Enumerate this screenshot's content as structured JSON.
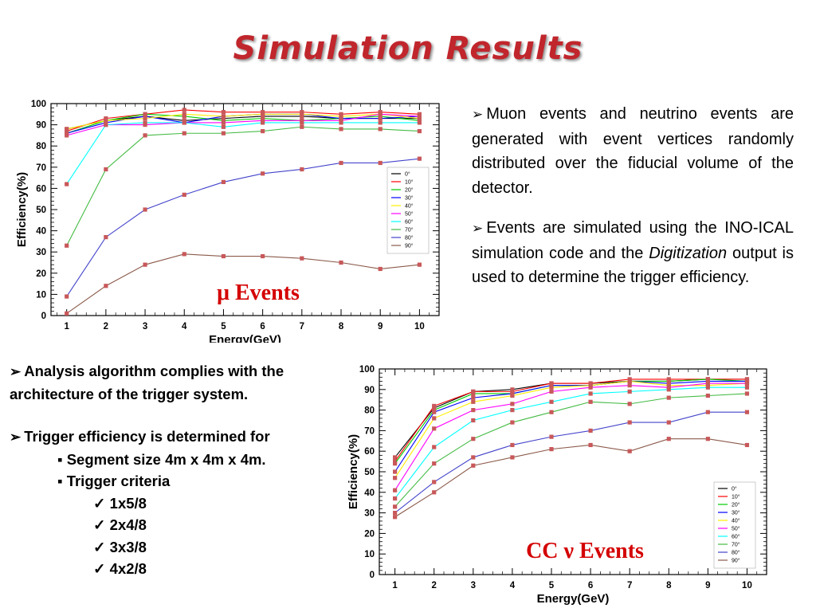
{
  "slide": {
    "title": "Simulation Results"
  },
  "description": {
    "bullet1": "Muon events and neutrino events are generated with event vertices randomly distributed over the fiducial volume of the detector.",
    "bullet2_pre": "Events are simulated using the INO-ICAL simulation code and the ",
    "bullet2_em": "Digitization",
    "bullet2_post": " output is used to determine the trigger efficiency."
  },
  "algorithm": {
    "bullet1": "Analysis algorithm complies with the architecture of the trigger system.",
    "bullet2": "Trigger efficiency is determined for",
    "sub_items": [
      "Segment size 4m x 4m x 4m.",
      "Trigger criteria"
    ],
    "criteria": [
      "1x5/8",
      "2x4/8",
      "3x3/8",
      "4x2/8"
    ]
  },
  "icons": {
    "bullet": "arrow-bullet-icon",
    "sub_bullet": "square-bullet-icon",
    "check": "check-icon"
  },
  "chart_data": [
    {
      "type": "line",
      "label": "μ Events",
      "xlabel": "Energy(GeV)",
      "ylabel": "Efficiency(%)",
      "x": [
        1,
        2,
        3,
        4,
        5,
        6,
        7,
        8,
        9,
        10
      ],
      "xlim": [
        0.6,
        10.5
      ],
      "ylim": [
        0,
        100
      ],
      "yticks": [
        0,
        10,
        20,
        30,
        40,
        50,
        60,
        70,
        80,
        90,
        100
      ],
      "legend_position": "right",
      "series": [
        {
          "name": "0°",
          "color": "#000000",
          "values": [
            88,
            92,
            94,
            92,
            93,
            94,
            94,
            93,
            93,
            93
          ]
        },
        {
          "name": "10°",
          "color": "#ff0000",
          "values": [
            87,
            93,
            95,
            97,
            96,
            96,
            96,
            95,
            96,
            95
          ]
        },
        {
          "name": "20°",
          "color": "#00cc00",
          "values": [
            86,
            92,
            95,
            94,
            92,
            93,
            92,
            93,
            94,
            92
          ]
        },
        {
          "name": "30°",
          "color": "#0000ff",
          "values": [
            86,
            91,
            94,
            91,
            94,
            95,
            95,
            93,
            93,
            94
          ]
        },
        {
          "name": "40°",
          "color": "#ffee00",
          "values": [
            88,
            92,
            93,
            95,
            94,
            95,
            95,
            94,
            95,
            93
          ]
        },
        {
          "name": "50°",
          "color": "#ff00ff",
          "values": [
            85,
            90,
            90,
            91,
            91,
            92,
            92,
            92,
            95,
            94
          ]
        },
        {
          "name": "60°",
          "color": "#00ffff",
          "values": [
            62,
            90,
            91,
            91,
            89,
            91,
            91,
            91,
            91,
            91
          ]
        },
        {
          "name": "70°",
          "color": "#44bb44",
          "values": [
            33,
            69,
            85,
            86,
            86,
            87,
            89,
            88,
            88,
            87
          ]
        },
        {
          "name": "80°",
          "color": "#4444cc",
          "values": [
            9,
            37,
            50,
            57,
            63,
            67,
            69,
            72,
            72,
            74
          ]
        },
        {
          "name": "90°",
          "color": "#8b5a4a",
          "values": [
            1,
            14,
            24,
            29,
            28,
            28,
            27,
            25,
            22,
            24
          ]
        }
      ]
    },
    {
      "type": "line",
      "label": "CC ν Events",
      "xlabel": "Energy(GeV)",
      "ylabel": "Efficiency(%)",
      "x": [
        1,
        2,
        3,
        4,
        5,
        6,
        7,
        8,
        9,
        10
      ],
      "xlim": [
        0.6,
        10.5
      ],
      "ylim": [
        0,
        100
      ],
      "yticks": [
        0,
        10,
        20,
        30,
        40,
        50,
        60,
        70,
        80,
        90,
        100
      ],
      "legend_position": "bottom-right",
      "series": [
        {
          "name": "0°",
          "color": "#000000",
          "values": [
            57,
            81,
            89,
            90,
            93,
            93,
            94,
            94,
            95,
            95
          ]
        },
        {
          "name": "10°",
          "color": "#ff0000",
          "values": [
            55,
            82,
            89,
            89,
            93,
            93,
            95,
            95,
            95,
            95
          ]
        },
        {
          "name": "20°",
          "color": "#00cc00",
          "values": [
            54,
            80,
            88,
            88,
            92,
            92,
            94,
            94,
            95,
            94
          ]
        },
        {
          "name": "30°",
          "color": "#0000ff",
          "values": [
            50,
            79,
            86,
            88,
            92,
            92,
            94,
            93,
            94,
            94
          ]
        },
        {
          "name": "40°",
          "color": "#ffee00",
          "values": [
            47,
            76,
            84,
            87,
            91,
            92,
            94,
            92,
            92,
            93
          ]
        },
        {
          "name": "50°",
          "color": "#ff00ff",
          "values": [
            41,
            71,
            80,
            83,
            89,
            91,
            92,
            91,
            93,
            93
          ]
        },
        {
          "name": "60°",
          "color": "#00ffff",
          "values": [
            37,
            62,
            75,
            80,
            84,
            88,
            89,
            90,
            91,
            91
          ]
        },
        {
          "name": "70°",
          "color": "#44bb44",
          "values": [
            33,
            54,
            66,
            74,
            79,
            84,
            83,
            86,
            87,
            88
          ]
        },
        {
          "name": "80°",
          "color": "#4444cc",
          "values": [
            30,
            45,
            57,
            63,
            67,
            70,
            74,
            74,
            79,
            79
          ]
        },
        {
          "name": "90°",
          "color": "#8b5a4a",
          "values": [
            28,
            40,
            53,
            57,
            61,
            63,
            60,
            66,
            66,
            63
          ]
        }
      ]
    }
  ]
}
